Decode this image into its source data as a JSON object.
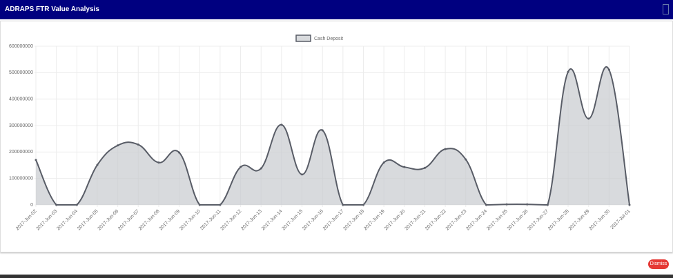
{
  "header": {
    "title": "ADRAPS FTR Value Analysis"
  },
  "chart_data": {
    "type": "area",
    "categories": [
      "2017-Jun-02",
      "2017-Jun-03",
      "2017-Jun-04",
      "2017-Jun-05",
      "2017-Jun-06",
      "2017-Jun-07",
      "2017-Jun-08",
      "2017-Jun-09",
      "2017-Jun-10",
      "2017-Jun-11",
      "2017-Jun-12",
      "2017-Jun-13",
      "2017-Jun-14",
      "2017-Jun-15",
      "2017-Jun-16",
      "2017-Jun-17",
      "2017-Jun-18",
      "2017-Jun-19",
      "2017-Jun-20",
      "2017-Jun-21",
      "2017-Jun-22",
      "2017-Jun-23",
      "2017-Jun-24",
      "2017-Jun-25",
      "2017-Jun-26",
      "2017-Jun-27",
      "2017-Jun-28",
      "2017-Jun-29",
      "2017-Jun-30",
      "2017-Jul-01"
    ],
    "series": [
      {
        "name": "Cash Deposit",
        "color": "#585c66",
        "values": [
          170000000,
          0,
          0,
          151000000,
          225000000,
          228000000,
          160000000,
          198000000,
          0,
          0,
          143000000,
          138000000,
          303000000,
          115000000,
          282000000,
          0,
          0,
          160000000,
          143000000,
          140000000,
          211000000,
          172000000,
          0,
          2000000,
          2000000,
          0,
          503000000,
          326000000,
          511000000,
          0
        ]
      }
    ],
    "ylim": [
      0,
      600000000
    ],
    "yticks": [
      0,
      100000000,
      200000000,
      300000000,
      400000000,
      500000000,
      600000000
    ],
    "grid": true
  },
  "footer": {
    "button": "Dismiss"
  }
}
